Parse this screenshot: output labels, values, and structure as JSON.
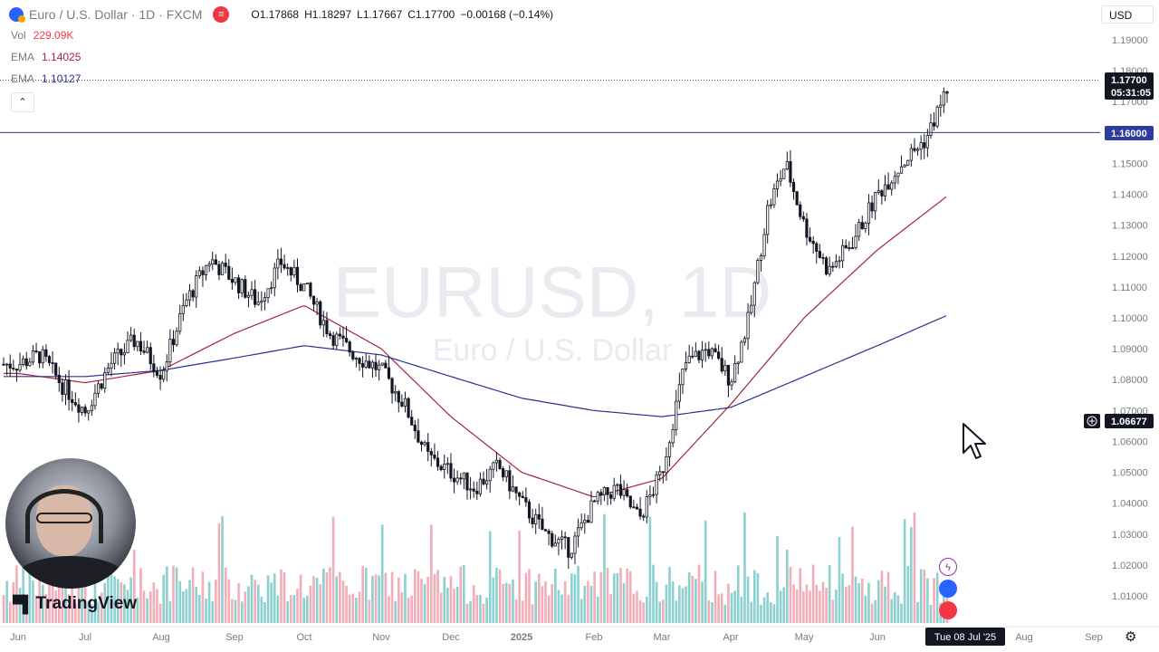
{
  "header": {
    "title": "Euro / U.S. Dollar · 1D · FXCM",
    "ohlc": {
      "o_label": "O",
      "o": "1.17868",
      "h_label": "H",
      "h": "1.18297",
      "l_label": "L",
      "l": "1.17667",
      "c_label": "C",
      "c": "1.17700",
      "change": "−0.00168 (−0.14%)"
    }
  },
  "indicators": [
    {
      "name": "Vol",
      "value": "229.09K",
      "color": "#f23645"
    },
    {
      "name": "EMA",
      "value": "1.14025",
      "color": "#a5233f"
    },
    {
      "name": "EMA",
      "value": "1.10127",
      "color": "#2e3092"
    }
  ],
  "currency_label": "USD",
  "brand": "TradingView",
  "watermark": {
    "symbol": "EURUSD, 1D",
    "name": "Euro / U.S. Dollar"
  },
  "price_axis": {
    "current_price": "1.17700",
    "countdown": "05:31:05",
    "level_label": "1.16000",
    "crosshair_label": "1.06677"
  },
  "time_axis": {
    "crosshair_label": "Tue 08 Jul '25"
  },
  "chart_data": {
    "type": "candlestick",
    "title": "EURUSD, 1D",
    "subtitle": "Euro / U.S. Dollar",
    "xlabel": "",
    "ylabel": "",
    "ylim": [
      1.0,
      1.2
    ],
    "yticks": [
      "1.19000",
      "1.18000",
      "1.17000",
      "1.16000",
      "1.15000",
      "1.14000",
      "1.13000",
      "1.12000",
      "1.11000",
      "1.10000",
      "1.09000",
      "1.08000",
      "1.07000",
      "1.06000",
      "1.05000",
      "1.04000",
      "1.03000",
      "1.02000",
      "1.01000"
    ],
    "xticks": [
      "Jun",
      "Jul",
      "Aug",
      "Sep",
      "Oct",
      "Nov",
      "Dec",
      "2025",
      "Feb",
      "Mar",
      "Apr",
      "May",
      "Jun",
      "Aug",
      "Sep"
    ],
    "horizontal_level": 1.16,
    "crosshair_price": 1.06677,
    "colors": {
      "up": "#131722",
      "down": "#131722",
      "vol_up": "#78c8c8",
      "vol_down": "#f0a0ab",
      "ema_fast": "#a5233f",
      "ema_slow": "#2e3092",
      "level": "#2e3c6e"
    },
    "price_keypoints": [
      [
        "Jun",
        1.085
      ],
      [
        "",
        1.088
      ],
      [
        "",
        1.078
      ],
      [
        "Jul",
        1.07
      ],
      [
        "",
        1.085
      ],
      [
        "",
        1.093
      ],
      [
        "Aug",
        1.082
      ],
      [
        "",
        1.105
      ],
      [
        "",
        1.119
      ],
      [
        "Sep",
        1.112
      ],
      [
        "",
        1.105
      ],
      [
        "",
        1.118
      ],
      [
        "Oct",
        1.11
      ],
      [
        "",
        1.095
      ],
      [
        "",
        1.088
      ],
      [
        "Nov",
        1.083
      ],
      [
        "",
        1.072
      ],
      [
        "",
        1.055
      ],
      [
        "Dec",
        1.05
      ],
      [
        "",
        1.045
      ],
      [
        "",
        1.052
      ],
      [
        "2025",
        1.04
      ],
      [
        "",
        1.03
      ],
      [
        "",
        1.025
      ],
      [
        "Feb",
        1.04
      ],
      [
        "",
        1.045
      ],
      [
        "",
        1.035
      ],
      [
        "Mar",
        1.05
      ],
      [
        "",
        1.085
      ],
      [
        "",
        1.09
      ],
      [
        "Apr",
        1.08
      ],
      [
        "",
        1.1
      ],
      [
        "",
        1.135
      ],
      [
        "",
        1.15
      ],
      [
        "May",
        1.13
      ],
      [
        "",
        1.115
      ],
      [
        "",
        1.125
      ],
      [
        "Jun",
        1.14
      ],
      [
        "",
        1.15
      ],
      [
        "",
        1.158
      ],
      [
        "Jul",
        1.177
      ]
    ],
    "ema_fast_keypoints": [
      [
        "Jun",
        1.082
      ],
      [
        "Jul",
        1.079
      ],
      [
        "Aug",
        1.083
      ],
      [
        "Sep",
        1.095
      ],
      [
        "Oct",
        1.104
      ],
      [
        "Nov",
        1.09
      ],
      [
        "Dec",
        1.068
      ],
      [
        "2025",
        1.05
      ],
      [
        "Feb",
        1.042
      ],
      [
        "Mar",
        1.048
      ],
      [
        "Apr",
        1.072
      ],
      [
        "May",
        1.1
      ],
      [
        "Jun",
        1.122
      ],
      [
        "Jul",
        1.1403
      ]
    ],
    "ema_slow_keypoints": [
      [
        "Jun",
        1.081
      ],
      [
        "Jul",
        1.081
      ],
      [
        "Aug",
        1.083
      ],
      [
        "Sep",
        1.087
      ],
      [
        "Oct",
        1.091
      ],
      [
        "Nov",
        1.088
      ],
      [
        "Dec",
        1.081
      ],
      [
        "2025",
        1.074
      ],
      [
        "Feb",
        1.07
      ],
      [
        "Mar",
        1.068
      ],
      [
        "Apr",
        1.071
      ],
      [
        "May",
        1.081
      ],
      [
        "Jun",
        1.091
      ],
      [
        "Jul",
        1.1013
      ]
    ]
  }
}
